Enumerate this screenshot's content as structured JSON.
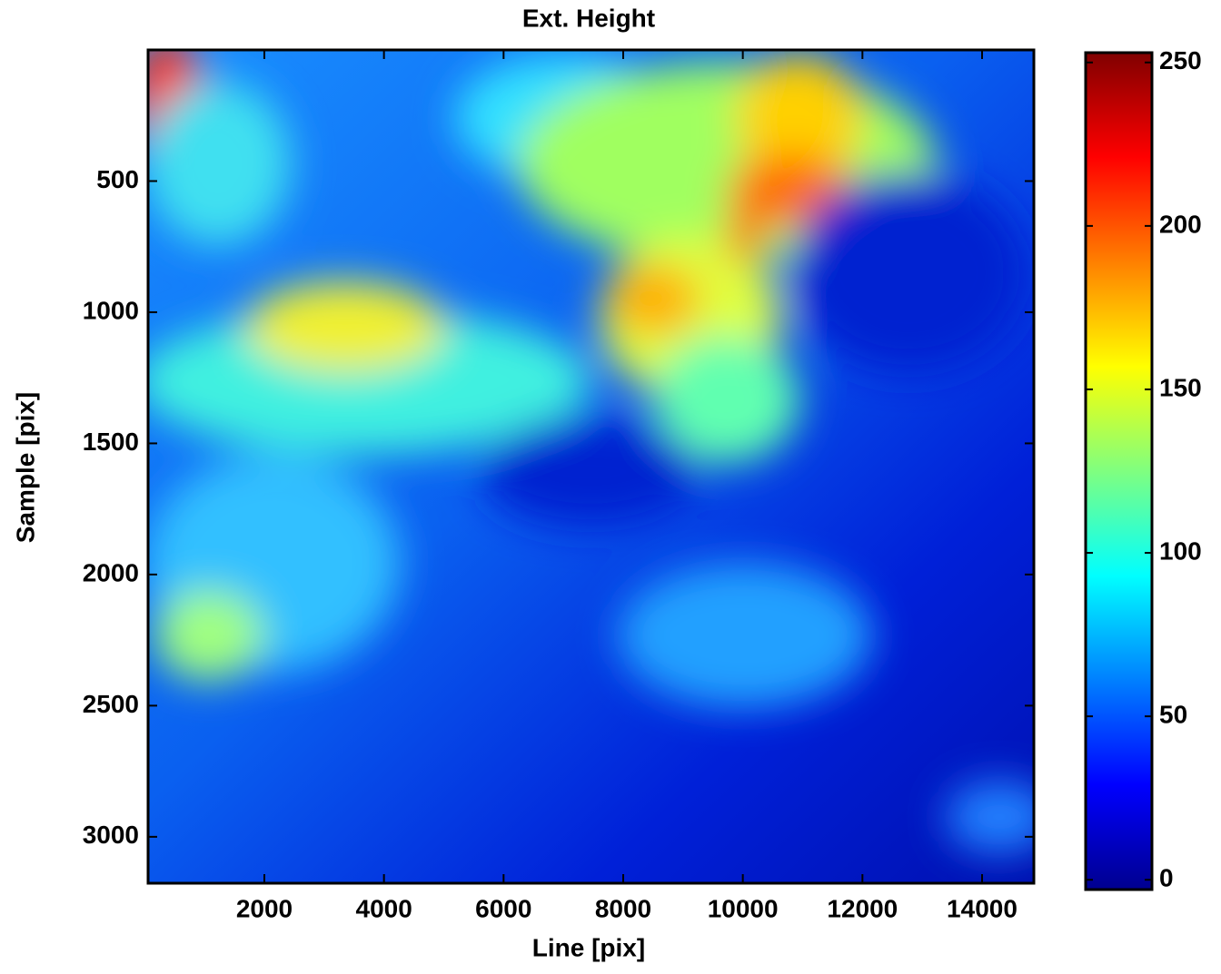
{
  "chart_data": {
    "type": "heatmap",
    "title": "Ext. Height",
    "x_label": "Line [pix]",
    "y_label": "Sample [pix]",
    "xlim": [
      56,
      14866
    ],
    "xticks": [
      2000,
      4000,
      6000,
      8000,
      10000,
      12000,
      14000
    ],
    "ylim": [
      0,
      3177
    ],
    "yticks": [
      500,
      1000,
      1500,
      2000,
      2500,
      3000
    ],
    "y_reversed": true,
    "colorbar": {
      "lim": [
        -3,
        253
      ],
      "ticks": [
        0,
        50,
        100,
        150,
        200,
        250
      ],
      "colormap": "jet"
    }
  }
}
